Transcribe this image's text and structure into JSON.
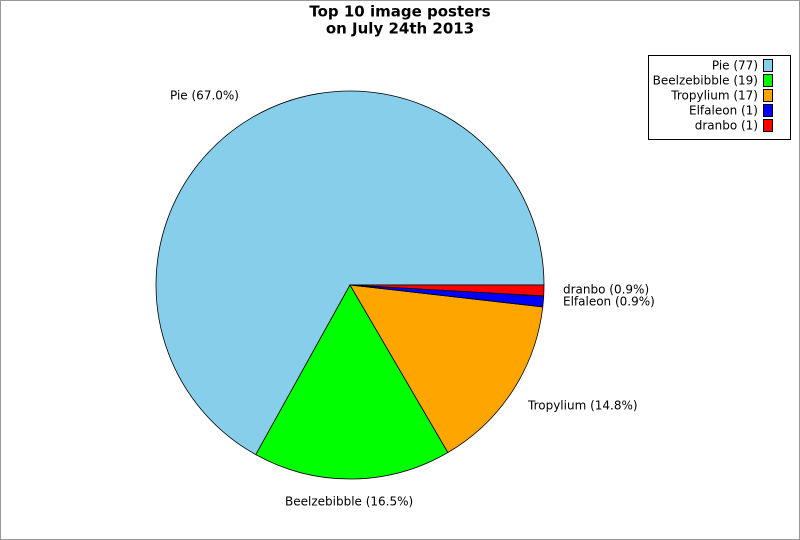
{
  "chart_data": {
    "type": "pie",
    "title": [
      "Top 10 image posters",
      "on July 24th 2013"
    ],
    "series": [
      {
        "name": "Pie",
        "color": "#87ceeb"
      },
      {
        "name": "Beelzebibble",
        "color": "#00ff00"
      },
      {
        "name": "Tropylium",
        "color": "#ffa500"
      },
      {
        "name": "Elfaleon",
        "color": "#0000ff"
      },
      {
        "name": "dranbo",
        "color": "#ff0000"
      }
    ],
    "values": [
      67.0,
      16.5,
      14.8,
      0.9,
      0.9
    ],
    "value_labels": [
      "Pie (67.0%)",
      "Beelzebibble (16.5%)",
      "Tropylium (14.8%)",
      "Elfaleon (0.9%)",
      "dranbo (0.9%)"
    ],
    "counts": [
      77,
      19,
      17,
      1,
      1
    ],
    "legend_labels": [
      "Pie (77)",
      "Beelzebibble (19)",
      "Tropylium (17)",
      "Elfaleon (1)",
      "dranbo (1)"
    ],
    "legend": "top-right"
  }
}
